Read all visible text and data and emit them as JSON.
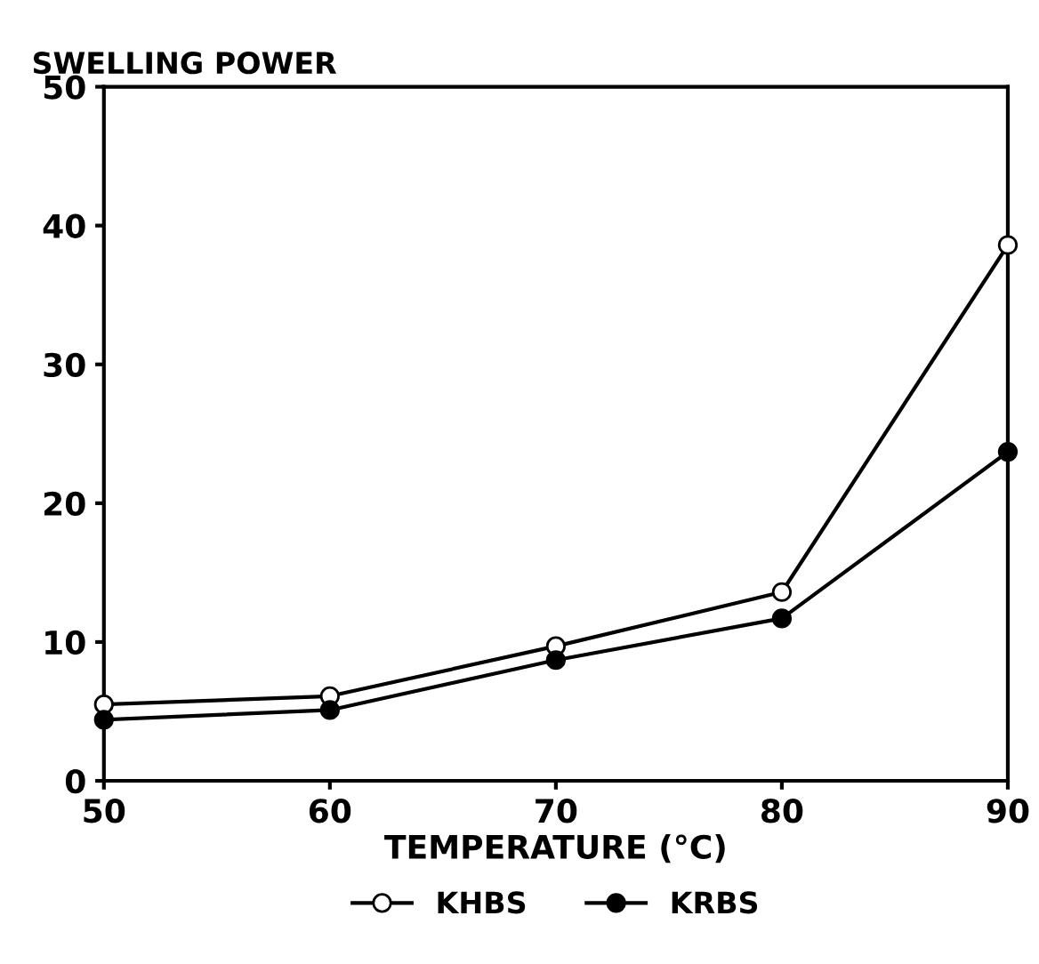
{
  "chart_data": {
    "type": "line",
    "ylabel": "SWELLING POWER",
    "xlabel": "TEMPERATURE (°C)",
    "x": [
      50,
      60,
      70,
      80,
      90
    ],
    "series": [
      {
        "name": "KHBS",
        "color": "#000000",
        "values": [
          5.5,
          6.1,
          9.7,
          13.6,
          38.6
        ]
      },
      {
        "name": "KRBS",
        "color": "#000000",
        "values": [
          4.4,
          5.1,
          8.7,
          11.7,
          23.7
        ]
      }
    ],
    "xlim": [
      50,
      90
    ],
    "xticks": [
      50,
      60,
      70,
      80,
      90
    ],
    "ylim": [
      0,
      50
    ],
    "yticks": [
      0,
      10,
      20,
      30,
      40,
      50
    ],
    "grid": false,
    "legend": "bottom",
    "marker": "circle",
    "line_style": "solid"
  }
}
